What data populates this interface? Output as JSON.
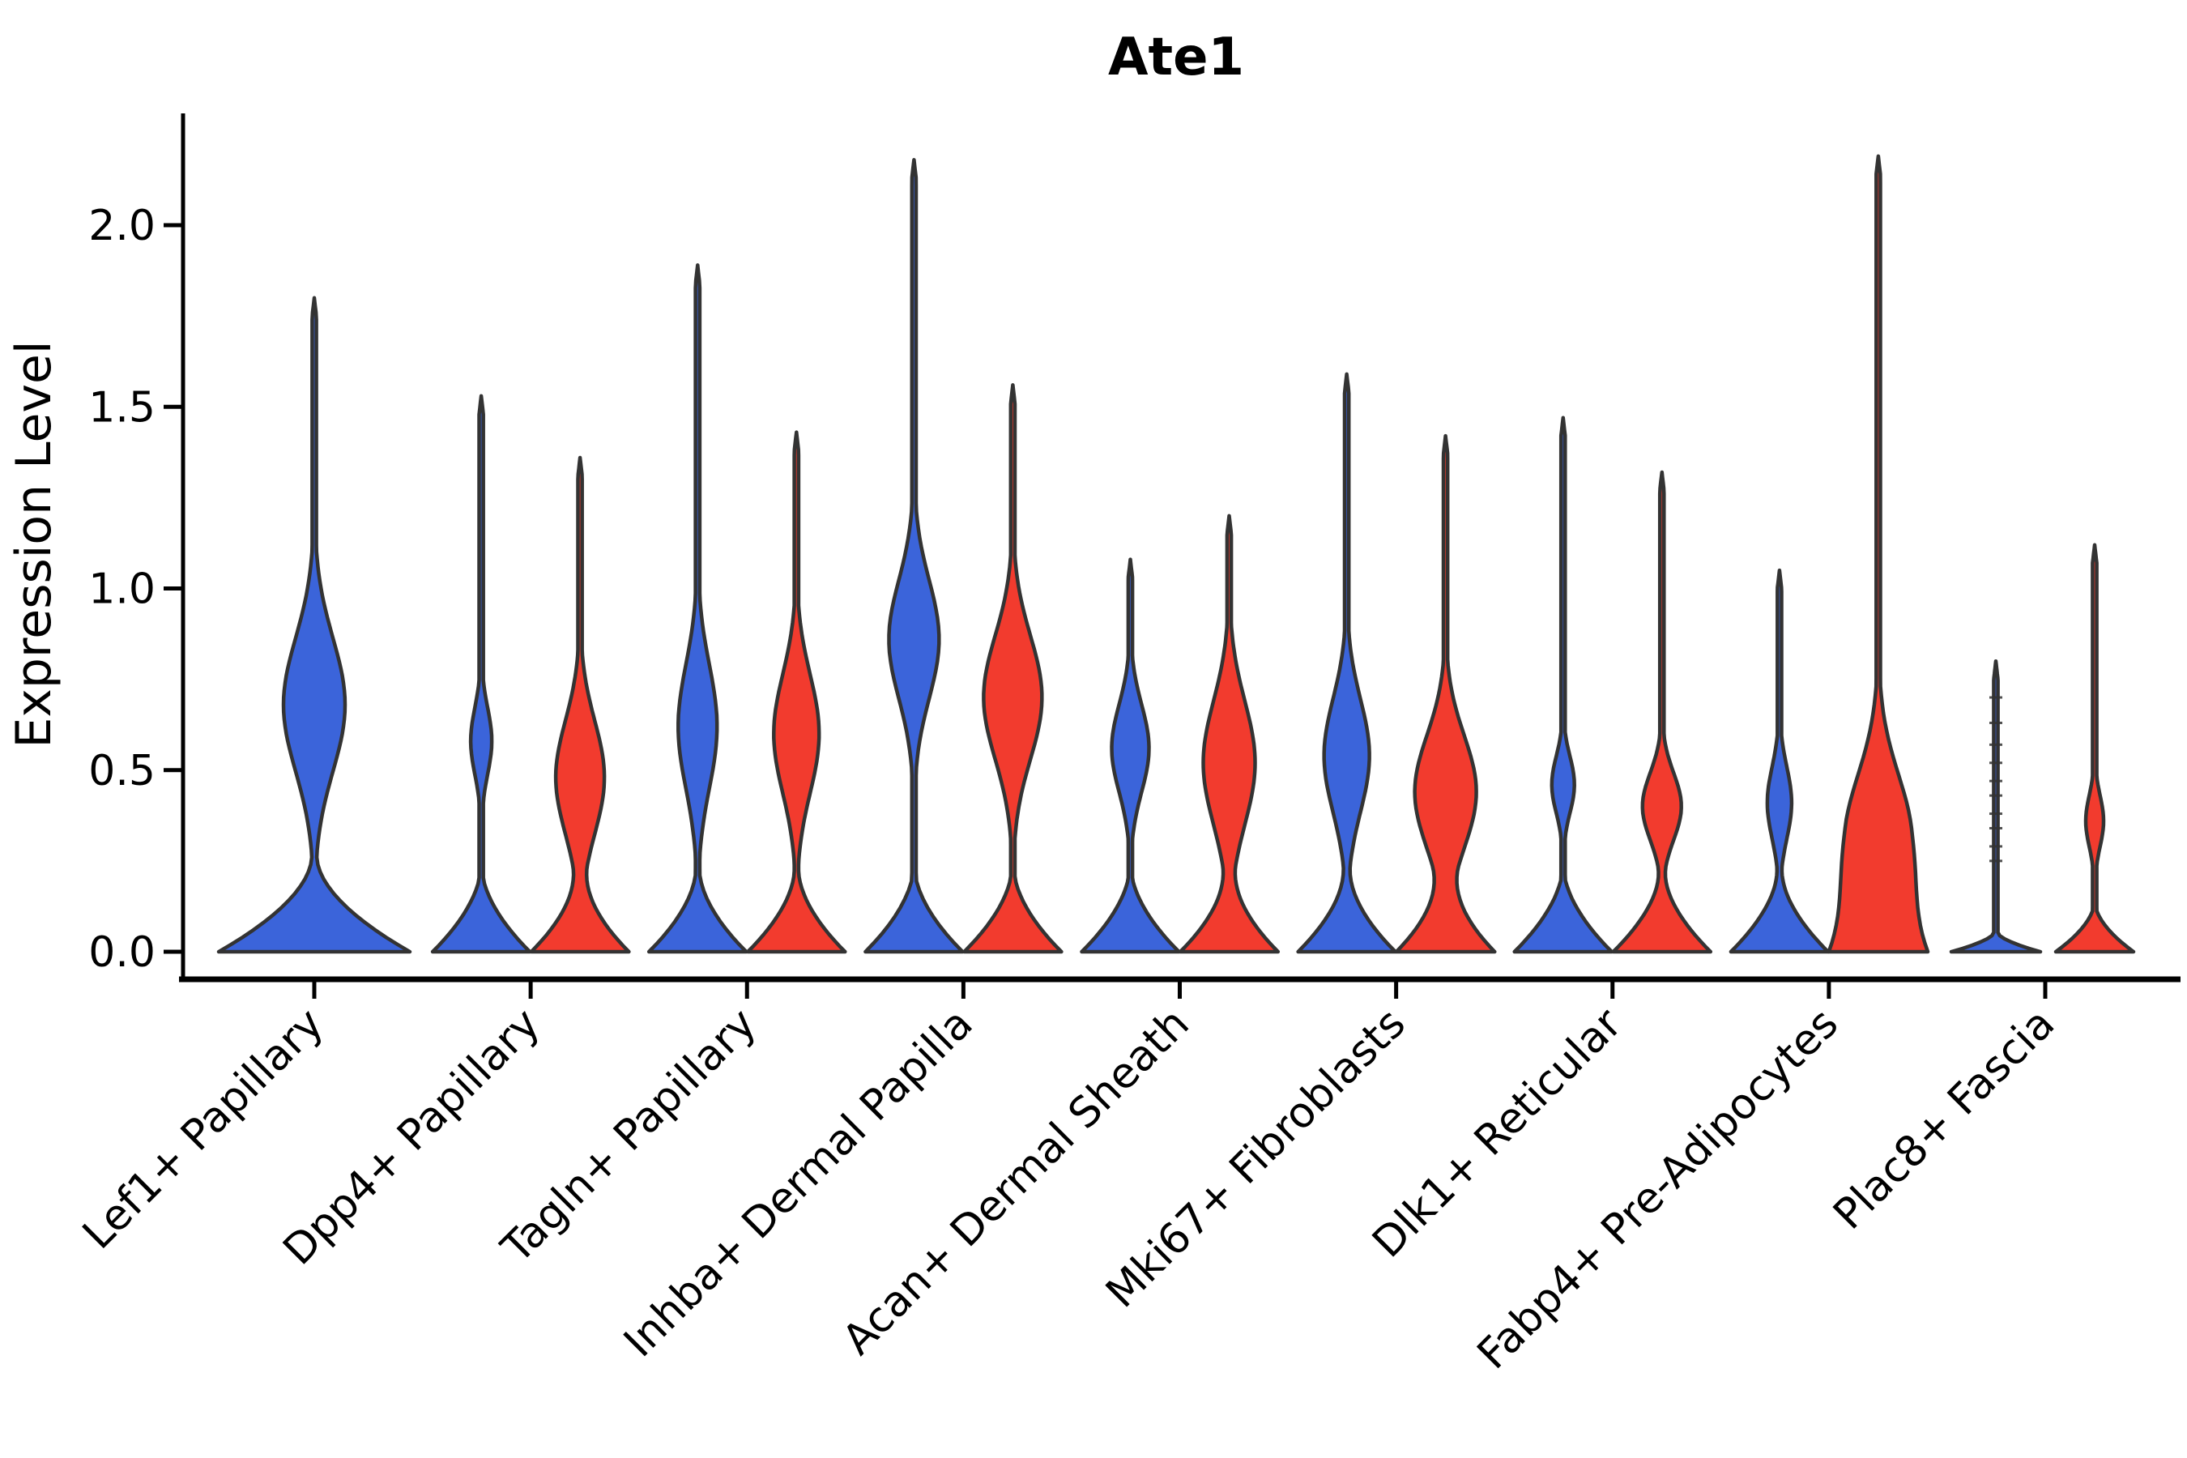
{
  "title": "Ate1",
  "y_axis": {
    "label": "Expression Level",
    "ticks": [
      {
        "label": "2.0",
        "value": 2.0
      },
      {
        "label": "1.5",
        "value": 1.5
      },
      {
        "label": "1.0",
        "value": 1.0
      },
      {
        "label": "0.5",
        "value": 0.5
      },
      {
        "label": "0.0",
        "value": 0.0
      }
    ]
  },
  "colors": {
    "blue_fill": "#3B64DA",
    "red_fill": "#F23B2E",
    "outline": "#333333",
    "axis": "#000000"
  },
  "chart_data": {
    "type": "violin",
    "title": "Ate1",
    "xlabel": "",
    "ylabel": "Expression Level",
    "ylim": [
      0,
      2.31
    ],
    "grid": false,
    "legend": "none",
    "categories": [
      "Lef1+ Papillary",
      "Dpp4+ Papillary",
      "Tagln+ Papillary",
      "Inhba+ Dermal Papilla",
      "Acan+ Dermal Sheath",
      "Mki67+ Fibroblasts",
      "Dlk1+ Reticular",
      "Fabp4+ Pre-Adipocytes",
      "Plac8+ Fascia"
    ],
    "violins": [
      {
        "category": "Lef1+ Papillary",
        "groups": [
          {
            "series": "blue",
            "max": 1.8,
            "offset": 0,
            "base_w": 118,
            "base_ext": 0.27,
            "bulge": {
              "c": 0.68,
              "s": 0.26,
              "w": 38
            }
          }
        ]
      },
      {
        "category": "Dpp4+ Papillary",
        "groups": [
          {
            "series": "blue",
            "max": 1.53,
            "offset": -61,
            "base_w": 60,
            "base_ext": 0.24,
            "bulge": {
              "c": 0.58,
              "s": 0.13,
              "w": 13
            }
          },
          {
            "series": "red",
            "max": 1.36,
            "offset": 61,
            "base_w": 60,
            "base_ext": 0.24,
            "bulge": {
              "c": 0.48,
              "s": 0.22,
              "w": 30
            }
          }
        ]
      },
      {
        "category": "Tagln+ Papillary",
        "groups": [
          {
            "series": "blue",
            "max": 1.89,
            "offset": -61,
            "base_w": 60,
            "base_ext": 0.24,
            "bulge": {
              "c": 0.62,
              "s": 0.24,
              "w": 24
            }
          },
          {
            "series": "red",
            "max": 1.43,
            "offset": 61,
            "base_w": 60,
            "base_ext": 0.24,
            "bulge": {
              "c": 0.6,
              "s": 0.23,
              "w": 28
            }
          }
        ]
      },
      {
        "category": "Inhba+ Dermal Papilla",
        "groups": [
          {
            "series": "blue",
            "max": 2.18,
            "offset": -61,
            "base_w": 60,
            "base_ext": 0.24,
            "bulge": {
              "c": 0.86,
              "s": 0.23,
              "w": 31
            }
          },
          {
            "series": "red",
            "max": 1.56,
            "offset": 61,
            "base_w": 60,
            "base_ext": 0.24,
            "bulge": {
              "c": 0.7,
              "s": 0.24,
              "w": 36
            }
          }
        ]
      },
      {
        "category": "Acan+ Dermal Sheath",
        "groups": [
          {
            "series": "blue",
            "max": 1.08,
            "offset": -61,
            "base_w": 60,
            "base_ext": 0.24,
            "bulge": {
              "c": 0.56,
              "s": 0.17,
              "w": 23
            }
          },
          {
            "series": "red",
            "max": 1.2,
            "offset": 61,
            "base_w": 60,
            "base_ext": 0.24,
            "bulge": {
              "c": 0.52,
              "s": 0.24,
              "w": 32
            }
          }
        ]
      },
      {
        "category": "Mki67+ Fibroblasts",
        "groups": [
          {
            "series": "blue",
            "max": 1.59,
            "offset": -61,
            "base_w": 60,
            "base_ext": 0.24,
            "bulge": {
              "c": 0.54,
              "s": 0.22,
              "w": 28
            }
          },
          {
            "series": "red",
            "max": 1.42,
            "offset": 61,
            "base_w": 60,
            "base_ext": 0.24,
            "bulge": {
              "c": 0.44,
              "s": 0.22,
              "w": 38
            }
          }
        ]
      },
      {
        "category": "Dlk1+ Reticular",
        "groups": [
          {
            "series": "blue",
            "max": 1.47,
            "offset": -61,
            "base_w": 60,
            "base_ext": 0.24,
            "bulge": {
              "c": 0.46,
              "s": 0.11,
              "w": 14
            }
          },
          {
            "series": "red",
            "max": 1.32,
            "offset": 61,
            "base_w": 60,
            "base_ext": 0.24,
            "bulge": {
              "c": 0.4,
              "s": 0.13,
              "w": 24
            }
          }
        ]
      },
      {
        "category": "Fabp4+ Pre-Adipocytes",
        "groups": [
          {
            "series": "blue",
            "max": 1.05,
            "offset": -61,
            "base_w": 60,
            "base_ext": 0.24,
            "bulge": {
              "c": 0.41,
              "s": 0.14,
              "w": 15
            }
          },
          {
            "series": "red",
            "max": 2.19,
            "offset": 61,
            "base_w": 50,
            "base_ext": 0.34,
            "bulge": {
              "c": 0.3,
              "s": 0.26,
              "w": 42
            }
          }
        ]
      },
      {
        "category": "Plac8+ Fascia",
        "groups": [
          {
            "series": "blue",
            "max": 0.8,
            "offset": -61,
            "base_w": 55,
            "base_ext": 0.06,
            "bulge": null,
            "rug": [
              0.25,
              0.29,
              0.34,
              0.38,
              0.43,
              0.47,
              0.52,
              0.57,
              0.63,
              0.7
            ]
          },
          {
            "series": "red",
            "max": 1.12,
            "offset": 61,
            "base_w": 48,
            "base_ext": 0.14,
            "bulge": {
              "c": 0.36,
              "s": 0.1,
              "w": 11
            }
          }
        ]
      }
    ],
    "layout": {
      "x_first_tick": 388,
      "x_spacing": 267.125,
      "y_zero": 1175,
      "y_per_unit": 448.5,
      "violin_bottom": 1184,
      "spike_halfwidth": 2.6,
      "plot_left": 226,
      "plot_right": 2692,
      "plot_top": 140,
      "axis_bottom": 1209,
      "title_x": 1452,
      "title_y": 92,
      "ylabel_x": 62,
      "ylabel_y": 672
    }
  }
}
